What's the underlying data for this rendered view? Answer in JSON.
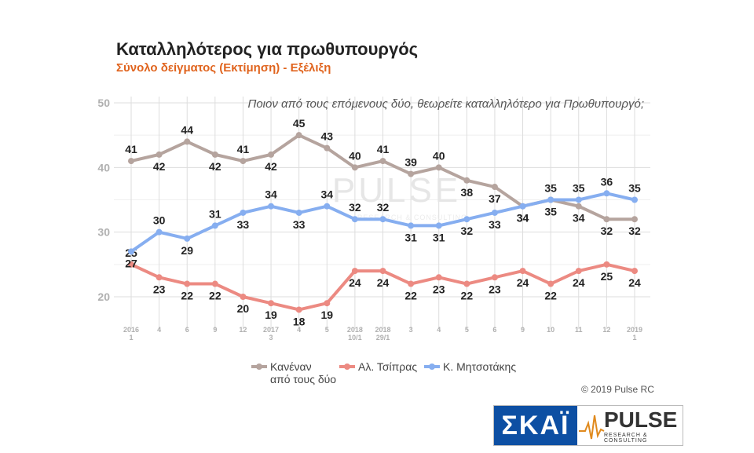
{
  "title": "Καταλληλότερος για πρωθυπουργός",
  "subtitle": "Σύνολο δείγματος   (Εκτίμηση) - Εξέλιξη",
  "copyright": "© 2019 Pulse RC",
  "logos": {
    "skai": "ΣΚΑΪ",
    "pulse": "PULSE",
    "pulse_sub": "RESEARCH & CONSULTING"
  },
  "watermark": {
    "main": "PULSE",
    "sub": "RESEARCH & CONSULTING"
  },
  "colors": {
    "none": "#b5a49e",
    "tsipras": "#ec8a82",
    "mitsotakis": "#86aef0",
    "grid": "#dddddd",
    "axis_text": "#b0b0b0"
  },
  "chart_data": {
    "type": "line",
    "title": "Καταλληλότερος για πρωθυπουργός",
    "subtitle": "Σύνολο δείγματος   (Εκτίμηση) - Εξέλιξη",
    "annotation": "Ποιον από τους επόμενους δύο, θεωρείτε καταλληλότερο για Πρωθυπουργό;",
    "ylim": [
      15,
      50
    ],
    "yticks": [
      20,
      30,
      40,
      50
    ],
    "grid": true,
    "legend_position": "bottom",
    "categories": [
      [
        "2016",
        "1"
      ],
      [
        "4"
      ],
      [
        "6"
      ],
      [
        "9"
      ],
      [
        "12"
      ],
      [
        "2017",
        "3"
      ],
      [
        "4"
      ],
      [
        "5"
      ],
      [
        "2018",
        "10/1"
      ],
      [
        "2018",
        "29/1"
      ],
      [
        "3"
      ],
      [
        "4"
      ],
      [
        "5"
      ],
      [
        "6"
      ],
      [
        "9"
      ],
      [
        "10"
      ],
      [
        "11"
      ],
      [
        "12"
      ],
      [
        "2019",
        "1"
      ]
    ],
    "series": [
      {
        "key": "none",
        "name": "Κανέναν από τους δύο",
        "name_lines": [
          "Κανέναν",
          "από τους δύο"
        ],
        "values": [
          41,
          42,
          44,
          42,
          41,
          42,
          45,
          43,
          40,
          41,
          39,
          40,
          38,
          37,
          34,
          35,
          34,
          32,
          32
        ]
      },
      {
        "key": "tsipras",
        "name": "Αλ. Τσίπρας",
        "name_lines": [
          "Αλ. Τσίπρας"
        ],
        "values": [
          25,
          23,
          22,
          22,
          20,
          19,
          18,
          19,
          24,
          24,
          22,
          23,
          22,
          23,
          24,
          22,
          24,
          25,
          24
        ]
      },
      {
        "key": "mitsotakis",
        "name": "Κ. Μητσοτάκης",
        "name_lines": [
          "Κ. Μητσοτάκης"
        ],
        "values": [
          27,
          30,
          29,
          31,
          33,
          34,
          33,
          34,
          32,
          32,
          31,
          31,
          32,
          33,
          34,
          35,
          35,
          36,
          35
        ]
      }
    ]
  }
}
